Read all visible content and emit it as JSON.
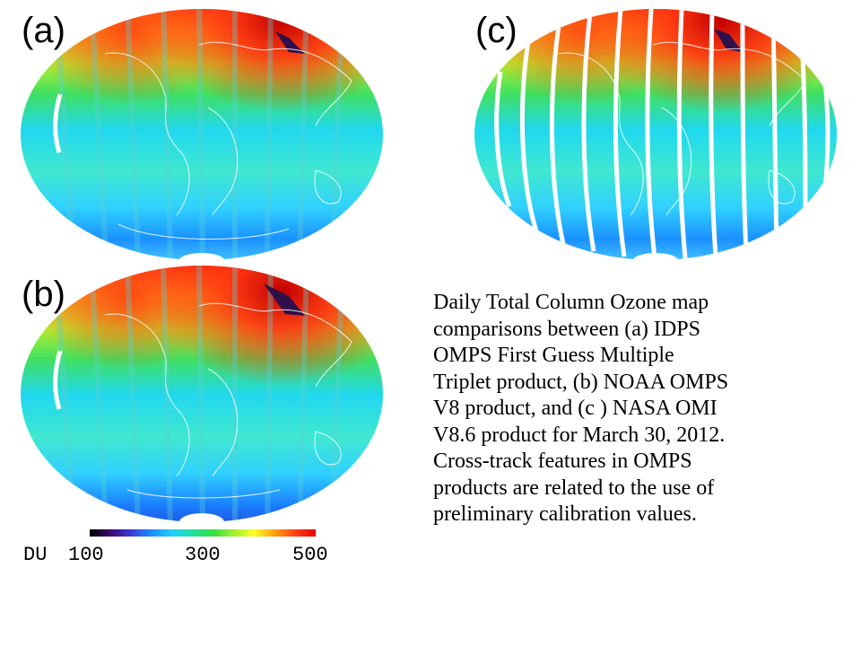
{
  "panels": [
    {
      "id": "a",
      "label": "(a)",
      "product": "IDPS OMPS First Guess Multiple Triplet",
      "swath_gaps": true
    },
    {
      "id": "b",
      "label": "(b)",
      "product": "NOAA OMPS V8",
      "swath_gaps": true
    },
    {
      "id": "c",
      "label": "(c)",
      "product": "NASA OMI V8.6",
      "swath_gaps": true
    }
  ],
  "colorbar": {
    "unit": "DU",
    "min": 100,
    "max": 500,
    "ticks": [
      "100",
      "300",
      "500"
    ],
    "colors": [
      "#000000",
      "#3a0a6a",
      "#3a3ad8",
      "#1a8cff",
      "#20d0ff",
      "#20e0a0",
      "#30e040",
      "#a0f030",
      "#ffff20",
      "#ffa010",
      "#ff4010",
      "#e80000"
    ]
  },
  "caption": {
    "lines": [
      "Daily Total Column Ozone map",
      "comparisons between (a) IDPS",
      "OMPS First Guess Multiple",
      "Triplet product, (b) NOAA OMPS",
      "V8 product, and (c ) NASA OMI",
      "V8.6 product for March 30, 2012.",
      "Cross-track features in OMPS",
      "products are related to the use of",
      "preliminary calibration values."
    ]
  }
}
